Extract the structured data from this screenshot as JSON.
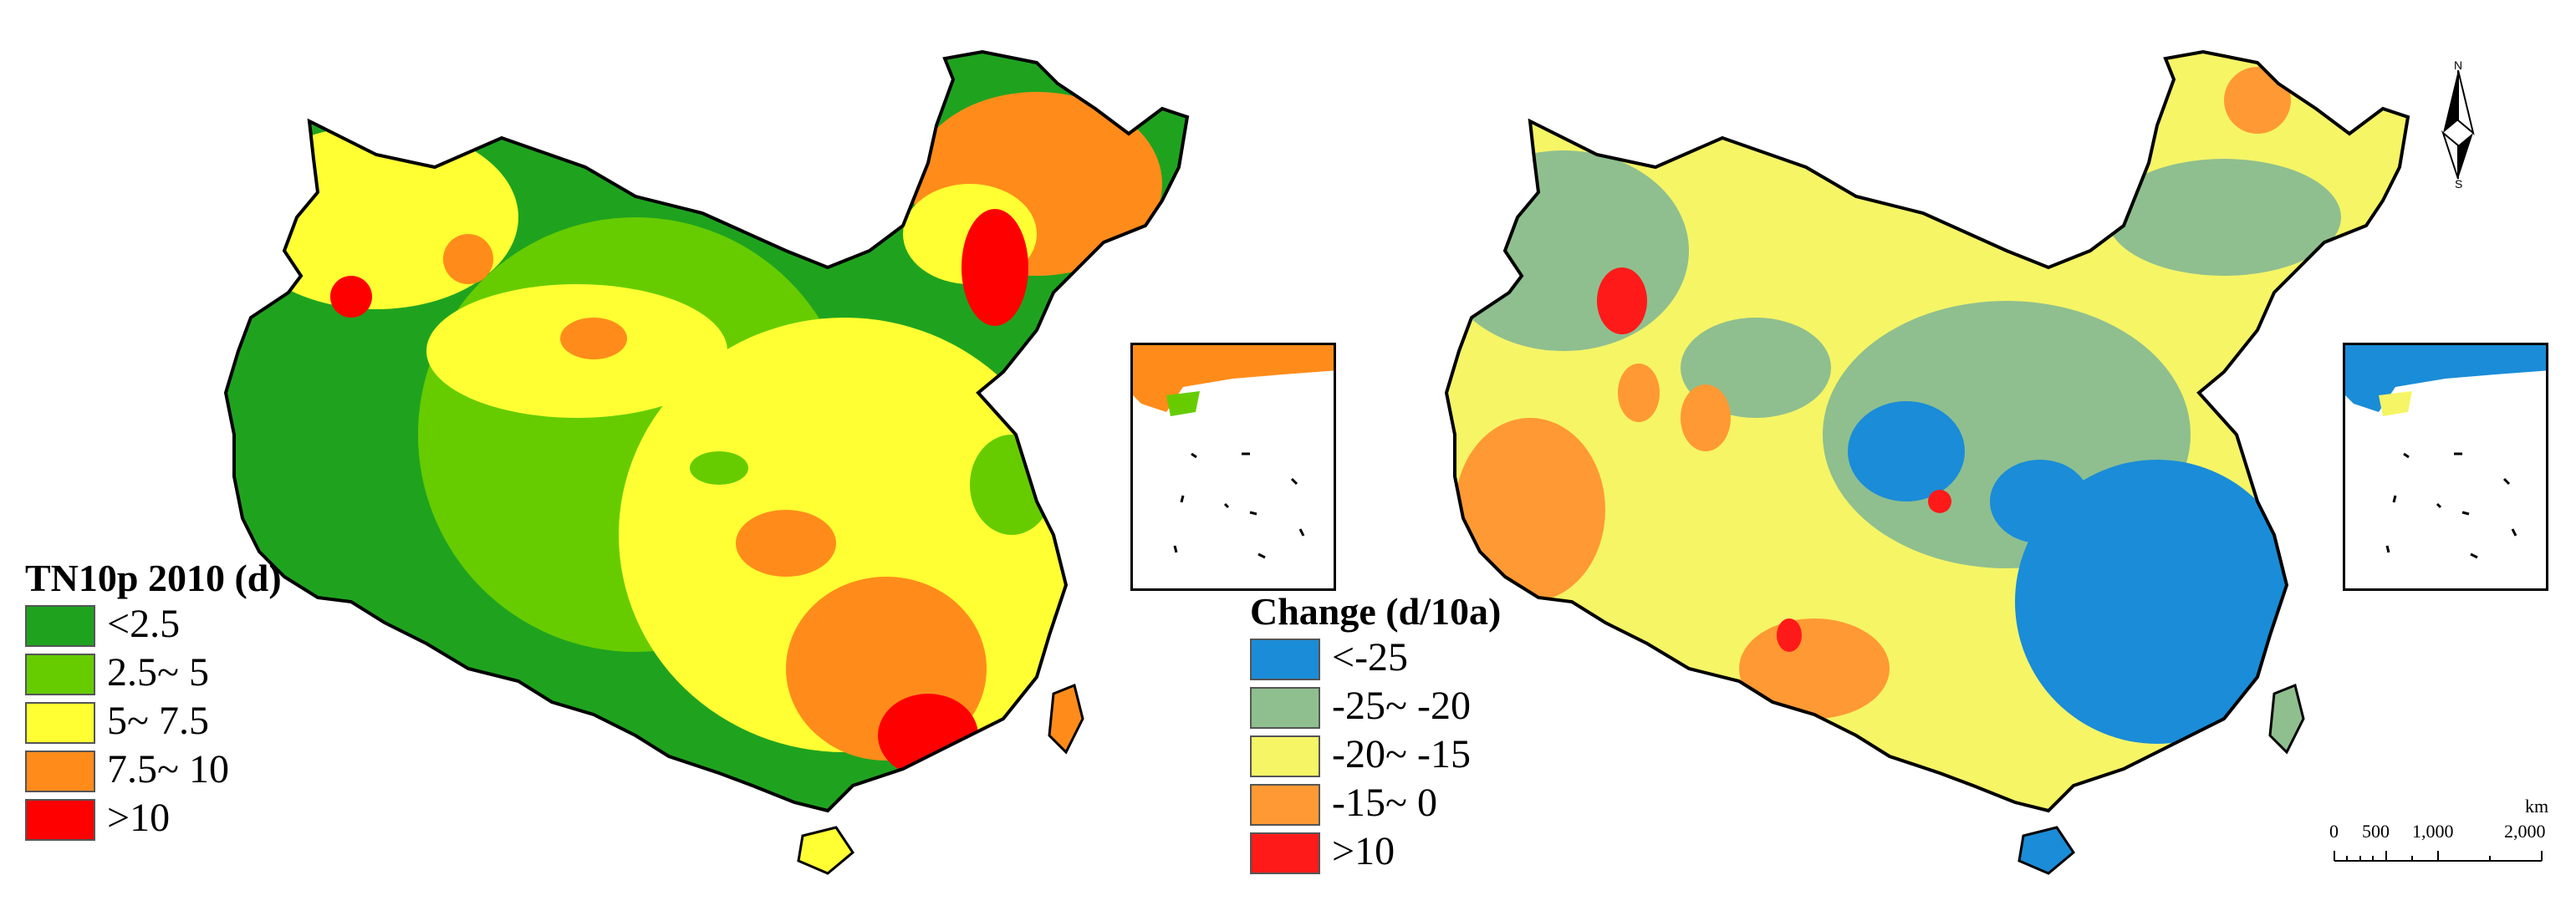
{
  "left_map": {
    "legend_title": "TN10p 2010 (d)",
    "classes": [
      {
        "label": "<2.5",
        "color": "#1fa31f"
      },
      {
        "label": "2.5~ 5",
        "color": "#66cc00"
      },
      {
        "label": "5~ 7.5",
        "color": "#ffff33"
      },
      {
        "label": "7.5~ 10",
        "color": "#ff8c1a"
      },
      {
        "label": ">10",
        "color": "#ff0000"
      }
    ]
  },
  "right_map": {
    "legend_title": "Change (d/10a)",
    "classes": [
      {
        "label": "<-25",
        "color": "#1a8cd8"
      },
      {
        "label": "-25~ -20",
        "color": "#8fbf8f"
      },
      {
        "label": "-20~ -15",
        "color": "#f5f566"
      },
      {
        "label": "-15~ 0",
        "color": "#ff9933"
      },
      {
        "label": ">10",
        "color": "#ff1a1a"
      }
    ]
  },
  "north_arrow": {
    "north": "N",
    "south": "S"
  },
  "scale_bar": {
    "unit": "km",
    "ticks": [
      "0",
      "500",
      "1,000",
      "2,000"
    ]
  }
}
